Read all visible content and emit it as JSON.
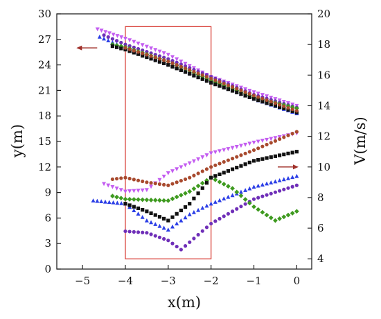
{
  "chart_data": {
    "type": "scatter",
    "xlabel": "x(m)",
    "ylabel": "y(m)",
    "y2label": "V(m/s)",
    "xlim": [
      -5.6,
      0.35
    ],
    "ylim": [
      0,
      30
    ],
    "y2lim": [
      3.33,
      20
    ],
    "xticks": [
      -5,
      -4,
      -3,
      -2,
      -1,
      0
    ],
    "yticks": [
      0,
      3,
      6,
      9,
      12,
      15,
      18,
      21,
      24,
      27,
      30
    ],
    "y2ticks": [
      4,
      6,
      8,
      10,
      12,
      14,
      16,
      18,
      20
    ],
    "xtick_labels": [
      "−5",
      "−4",
      "−3",
      "−2",
      "−1",
      "0"
    ],
    "ytick_labels": [
      "0",
      "3",
      "6",
      "9",
      "12",
      "15",
      "18",
      "21",
      "24",
      "27",
      "30"
    ],
    "y2tick_labels": [
      "4",
      "6",
      "8",
      "10",
      "12",
      "14",
      "16",
      "18",
      "20"
    ],
    "grid": false,
    "highlight_box": {
      "x": [
        -4,
        -2
      ],
      "y": [
        1.2,
        28.5
      ],
      "color": "#d9433c"
    },
    "arrows": [
      {
        "axis": "left",
        "at": [
          -4.9,
          26.0
        ],
        "color": "#a0302a"
      },
      {
        "axis": "right",
        "at": [
          -0.2,
          10.0
        ],
        "color": "#a0302a"
      }
    ],
    "series": [
      {
        "marker": "triangle-down",
        "color": "#c35cf0",
        "trajectory_points": [
          [
            -4.65,
            28.2
          ],
          [
            -4.0,
            27.1
          ],
          [
            -3.0,
            25.2
          ],
          [
            -2.0,
            22.6
          ],
          [
            -1.0,
            20.8
          ],
          [
            0.0,
            19.2
          ]
        ],
        "speed_points": [
          [
            -4.5,
            8.9
          ],
          [
            -4.0,
            8.4
          ],
          [
            -3.5,
            8.5
          ],
          [
            -3.0,
            9.6
          ],
          [
            -2.0,
            10.9
          ],
          [
            -1.0,
            11.6
          ],
          [
            0.0,
            12.2
          ]
        ]
      },
      {
        "marker": "triangle",
        "color": "#2b3ee6",
        "trajectory_points": [
          [
            -4.6,
            27.3
          ],
          [
            -4.0,
            26.0
          ],
          [
            -3.0,
            24.1
          ],
          [
            -2.0,
            22.0
          ],
          [
            -1.0,
            20.0
          ],
          [
            0.0,
            18.3
          ]
        ],
        "speed_points": [
          [
            -4.75,
            7.8
          ],
          [
            -4.0,
            7.6
          ],
          [
            -3.5,
            6.5
          ],
          [
            -3.0,
            5.9
          ],
          [
            -2.5,
            6.9
          ],
          [
            -2.0,
            7.6
          ],
          [
            -1.0,
            8.7
          ],
          [
            0.0,
            9.4
          ]
        ]
      },
      {
        "marker": "circle",
        "color": "#6f2fb8",
        "trajectory_points": [
          [
            -4.5,
            27.5
          ],
          [
            -4.0,
            26.4
          ],
          [
            -3.0,
            24.7
          ],
          [
            -2.0,
            22.6
          ],
          [
            -1.0,
            20.5
          ],
          [
            0.0,
            19.0
          ]
        ],
        "speed_points": [
          [
            -4.0,
            5.8
          ],
          [
            -3.5,
            5.7
          ],
          [
            -3.0,
            5.2
          ],
          [
            -2.7,
            4.6
          ],
          [
            -2.0,
            6.3
          ],
          [
            -1.0,
            7.9
          ],
          [
            0.0,
            8.8
          ]
        ]
      },
      {
        "marker": "diamond",
        "color": "#3e9a1f",
        "trajectory_points": [
          [
            -4.3,
            26.4
          ],
          [
            -4.0,
            26.1
          ],
          [
            -3.0,
            24.4
          ],
          [
            -2.0,
            22.2
          ],
          [
            -1.0,
            20.2
          ],
          [
            0.0,
            18.9
          ]
        ],
        "speed_points": [
          [
            -4.3,
            8.1
          ],
          [
            -4.0,
            7.9
          ],
          [
            -3.0,
            7.8
          ],
          [
            -2.5,
            8.4
          ],
          [
            -2.0,
            9.3
          ],
          [
            -1.5,
            8.6
          ],
          [
            -1.0,
            7.4
          ],
          [
            -0.5,
            6.5
          ],
          [
            0.0,
            7.1
          ]
        ]
      },
      {
        "marker": "square",
        "color": "#111111",
        "trajectory_points": [
          [
            -4.3,
            26.2
          ],
          [
            -4.0,
            25.8
          ],
          [
            -3.0,
            24.0
          ],
          [
            -2.0,
            21.9
          ],
          [
            -1.0,
            20.0
          ],
          [
            0.0,
            18.4
          ]
        ],
        "speed_points": [
          [
            -4.0,
            7.6
          ],
          [
            -3.5,
            7.1
          ],
          [
            -3.0,
            6.5
          ],
          [
            -2.5,
            7.6
          ],
          [
            -2.0,
            9.3
          ],
          [
            -1.0,
            10.4
          ],
          [
            0.0,
            11.0
          ]
        ]
      },
      {
        "marker": "circle",
        "color": "#a84a2e",
        "trajectory_points": [
          [
            -4.0,
            26.0
          ],
          [
            -3.0,
            24.4
          ],
          [
            -2.0,
            22.4
          ],
          [
            -1.0,
            20.4
          ],
          [
            0.0,
            18.6
          ]
        ],
        "speed_points": [
          [
            -4.3,
            9.2
          ],
          [
            -4.0,
            9.3
          ],
          [
            -3.5,
            9.0
          ],
          [
            -3.0,
            8.8
          ],
          [
            -2.5,
            9.3
          ],
          [
            -2.0,
            10.0
          ],
          [
            -1.0,
            11.1
          ],
          [
            0.0,
            12.3
          ]
        ]
      }
    ]
  }
}
